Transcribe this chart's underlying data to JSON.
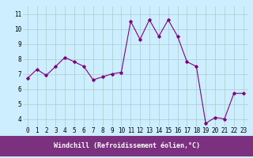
{
  "x": [
    0,
    1,
    2,
    3,
    4,
    5,
    6,
    7,
    8,
    9,
    10,
    11,
    12,
    13,
    14,
    15,
    16,
    17,
    18,
    19,
    20,
    21,
    22,
    23
  ],
  "y": [
    6.7,
    7.3,
    6.9,
    7.5,
    8.1,
    7.8,
    7.5,
    6.6,
    6.8,
    7.0,
    7.1,
    10.5,
    9.3,
    10.6,
    9.5,
    10.6,
    9.5,
    7.8,
    7.5,
    3.7,
    4.1,
    4.0,
    5.7,
    5.7
  ],
  "line_color": "#800080",
  "marker_color": "#800080",
  "bg_color": "#cceeff",
  "grid_color": "#aacccc",
  "xlabel": "Windchill (Refroidissement éolien,°C)",
  "xlabel_color": "#ffffff",
  "xlabel_bg": "#7b3080",
  "ylim": [
    3.5,
    11.5
  ],
  "yticks": [
    4,
    5,
    6,
    7,
    8,
    9,
    10,
    11
  ],
  "xticks": [
    0,
    1,
    2,
    3,
    4,
    5,
    6,
    7,
    8,
    9,
    10,
    11,
    12,
    13,
    14,
    15,
    16,
    17,
    18,
    19,
    20,
    21,
    22,
    23
  ],
  "tick_fontsize": 5.5,
  "xlabel_fontsize": 6.0,
  "figwidth": 3.2,
  "figheight": 2.0,
  "dpi": 100
}
